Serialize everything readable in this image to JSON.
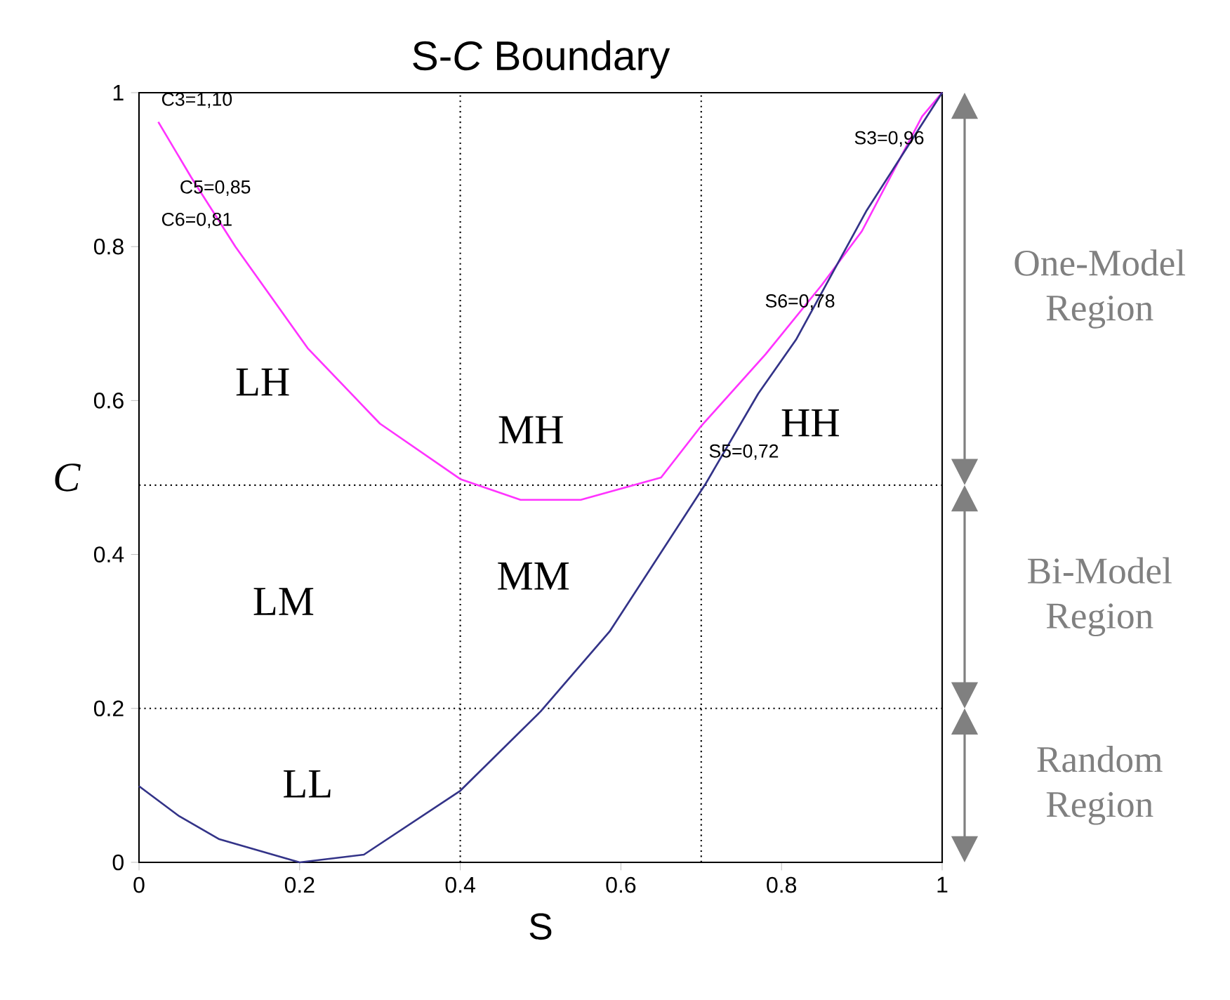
{
  "chart_data": {
    "type": "line",
    "title": "S-*C* Boundary",
    "xlabel": "S",
    "ylabel": "C",
    "xlim": [
      0,
      1
    ],
    "ylim": [
      0,
      1
    ],
    "xticks": [
      0,
      0.2,
      0.4,
      0.6,
      0.8,
      1
    ],
    "yticks": [
      0,
      0.2,
      0.4,
      0.6,
      0.8,
      1
    ],
    "grid": false,
    "marker": "none",
    "line_style": "solid",
    "series": [
      {
        "color": "#ff33ff",
        "x": [
          0.024,
          0.065,
          0.12,
          0.21,
          0.3,
          0.4,
          0.475,
          0.55,
          0.65,
          0.7,
          0.78,
          0.85,
          0.9,
          0.975,
          1.0
        ],
        "values": [
          0.962,
          0.89,
          0.8,
          0.668,
          0.57,
          0.498,
          0.471,
          0.471,
          0.5,
          0.567,
          0.66,
          0.75,
          0.82,
          0.969,
          1.0
        ]
      },
      {
        "color": "#333388",
        "x": [
          0,
          0.05,
          0.1,
          0.2,
          0.28,
          0.4,
          0.5,
          0.586,
          0.705,
          0.771,
          0.818,
          0.906,
          1.0
        ],
        "values": [
          0.099,
          0.06,
          0.03,
          0.0,
          0.01,
          0.093,
          0.196,
          0.3,
          0.491,
          0.609,
          0.679,
          0.847,
          1.0
        ]
      }
    ],
    "ref_lines": [
      {
        "axis": "x",
        "value": 0.4,
        "color": "#000000",
        "line_style": "dotted"
      },
      {
        "axis": "x",
        "value": 0.7,
        "color": "#000000",
        "line_style": "dotted"
      },
      {
        "axis": "y",
        "value": 0.49,
        "color": "#000000",
        "line_style": "dotted"
      },
      {
        "axis": "y",
        "value": 0.2,
        "color": "#000000",
        "line_style": "dotted"
      }
    ],
    "annotations": [
      "C3=1,10",
      "C5=0,85",
      "C6=0,81",
      "S3=0,96",
      "S6=0,78",
      "S5=0,72",
      "LH",
      "MH",
      "HH",
      "LM",
      "MM",
      "LL",
      "One-Model Region",
      "Bi-Model Region",
      "Random Region"
    ]
  }
}
